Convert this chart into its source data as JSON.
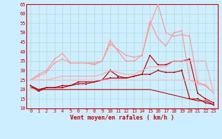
{
  "x": [
    0,
    1,
    2,
    3,
    4,
    5,
    6,
    7,
    8,
    9,
    10,
    11,
    12,
    13,
    14,
    15,
    16,
    17,
    18,
    19,
    20,
    21,
    22,
    23
  ],
  "series": [
    {
      "y": [
        22,
        19,
        21,
        21,
        22,
        22,
        24,
        24,
        24,
        25,
        30,
        27,
        26,
        27,
        28,
        38,
        33,
        33,
        35,
        35,
        36,
        18,
        15,
        13
      ],
      "color": "#cc0000",
      "lw": 0.9,
      "marker": true
    },
    {
      "y": [
        22,
        20,
        21,
        21,
        21,
        22,
        23,
        23,
        24,
        25,
        26,
        26,
        26,
        27,
        28,
        28,
        30,
        29,
        29,
        30,
        15,
        15,
        13,
        12
      ],
      "color": "#cc0000",
      "lw": 0.9,
      "marker": true
    },
    {
      "y": [
        21,
        20,
        20,
        20,
        20,
        20,
        20,
        20,
        20,
        20,
        20,
        20,
        20,
        20,
        20,
        20,
        19,
        18,
        17,
        16,
        15,
        14,
        14,
        12
      ],
      "color": "#cc0000",
      "lw": 0.8,
      "marker": false
    },
    {
      "y": [
        25,
        28,
        30,
        36,
        39,
        34,
        34,
        34,
        34,
        35,
        46,
        40,
        35,
        35,
        38,
        56,
        47,
        43,
        50,
        51,
        25,
        24,
        22,
        18
      ],
      "color": "#ff9999",
      "lw": 0.9,
      "marker": true
    },
    {
      "y": [
        25,
        27,
        29,
        34,
        36,
        34,
        34,
        34,
        33,
        35,
        44,
        41,
        38,
        37,
        38,
        54,
        65,
        50,
        48,
        49,
        48,
        23,
        22,
        18
      ],
      "color": "#ff9999",
      "lw": 0.9,
      "marker": true
    },
    {
      "y": [
        25,
        25,
        25,
        26,
        27,
        27,
        27,
        27,
        27,
        28,
        30,
        29,
        28,
        28,
        30,
        32,
        32,
        32,
        35,
        35,
        35,
        35,
        35,
        18
      ],
      "color": "#ffaaaa",
      "lw": 0.9,
      "marker": false
    },
    {
      "y": [
        25,
        25,
        25,
        25,
        25,
        25,
        25,
        25,
        25,
        25,
        25,
        25,
        25,
        25,
        25,
        25,
        25,
        25,
        25,
        25,
        25,
        23,
        23,
        18
      ],
      "color": "#ffbbbb",
      "lw": 0.8,
      "marker": false
    }
  ],
  "ylim": [
    10,
    65
  ],
  "yticks": [
    10,
    15,
    20,
    25,
    30,
    35,
    40,
    45,
    50,
    55,
    60,
    65
  ],
  "xticks": [
    0,
    1,
    2,
    3,
    4,
    5,
    6,
    7,
    8,
    9,
    10,
    11,
    12,
    13,
    14,
    15,
    16,
    17,
    18,
    19,
    20,
    21,
    22,
    23
  ],
  "xlabel": "Vent moyen/en rafales ( km/h )",
  "bg_color": "#cceeff",
  "grid_color": "#b0d8d0",
  "axis_color": "#cc0000",
  "wind_arrows": [
    "↖",
    "↖",
    "↖",
    "↖",
    "↖",
    "↖",
    "↖",
    "↖",
    "↗",
    "↑",
    "↑",
    "↑",
    "↑",
    "↑",
    "↑",
    "→",
    "↗",
    "→",
    "↗",
    "↗",
    "↗",
    "↗",
    "↗",
    "↗"
  ]
}
